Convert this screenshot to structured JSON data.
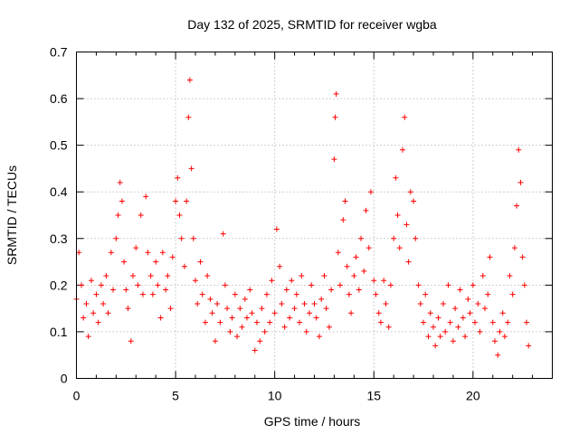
{
  "chart_data": {
    "type": "scatter",
    "title": "Day 132 of 2025, SRMTID for receiver wgba",
    "xlabel": "GPS time / hours",
    "ylabel": "SRMTID / TECUs",
    "xlim": [
      0,
      24
    ],
    "ylim": [
      0,
      0.7
    ],
    "xticks": [
      0,
      5,
      10,
      15,
      20
    ],
    "yticks": [
      0,
      0.1,
      0.2,
      0.3,
      0.4,
      0.5,
      0.6,
      0.7
    ],
    "grid": true,
    "marker": "+",
    "color": "#ff0000",
    "x": [
      0.0,
      0.12,
      0.25,
      0.35,
      0.5,
      0.6,
      0.75,
      0.85,
      1.0,
      1.1,
      1.25,
      1.35,
      1.5,
      1.6,
      1.75,
      1.85,
      2.0,
      2.1,
      2.2,
      2.3,
      2.4,
      2.5,
      2.6,
      2.75,
      2.85,
      3.0,
      3.1,
      3.25,
      3.35,
      3.5,
      3.6,
      3.75,
      3.85,
      4.0,
      4.1,
      4.25,
      4.35,
      4.5,
      4.6,
      4.75,
      4.85,
      5.0,
      5.1,
      5.2,
      5.3,
      5.45,
      5.55,
      5.65,
      5.72,
      5.8,
      5.9,
      6.0,
      6.1,
      6.25,
      6.35,
      6.5,
      6.6,
      6.75,
      6.85,
      7.0,
      7.1,
      7.25,
      7.4,
      7.5,
      7.6,
      7.75,
      7.85,
      8.0,
      8.1,
      8.25,
      8.35,
      8.5,
      8.6,
      8.75,
      8.85,
      9.0,
      9.1,
      9.25,
      9.35,
      9.5,
      9.6,
      9.75,
      9.85,
      10.0,
      10.1,
      10.25,
      10.35,
      10.5,
      10.6,
      10.75,
      10.85,
      11.0,
      11.1,
      11.25,
      11.35,
      11.5,
      11.6,
      11.75,
      11.85,
      12.0,
      12.1,
      12.25,
      12.35,
      12.5,
      12.6,
      12.75,
      12.85,
      13.0,
      13.05,
      13.1,
      13.2,
      13.3,
      13.45,
      13.55,
      13.65,
      13.75,
      13.85,
      14.0,
      14.1,
      14.25,
      14.35,
      14.5,
      14.6,
      14.75,
      14.85,
      15.0,
      15.1,
      15.25,
      15.35,
      15.5,
      15.6,
      15.75,
      15.85,
      16.0,
      16.1,
      16.2,
      16.3,
      16.45,
      16.55,
      16.65,
      16.75,
      16.85,
      17.0,
      17.1,
      17.25,
      17.35,
      17.5,
      17.6,
      17.75,
      17.85,
      18.0,
      18.1,
      18.25,
      18.35,
      18.5,
      18.6,
      18.75,
      18.85,
      19.0,
      19.1,
      19.25,
      19.35,
      19.5,
      19.6,
      19.75,
      19.85,
      20.0,
      20.1,
      20.25,
      20.35,
      20.5,
      20.6,
      20.75,
      20.85,
      21.0,
      21.1,
      21.25,
      21.35,
      21.5,
      21.6,
      21.75,
      21.85,
      22.0,
      22.1,
      22.2,
      22.3,
      22.4,
      22.5,
      22.6,
      22.7,
      22.8
    ],
    "y": [
      0.17,
      0.27,
      0.2,
      0.13,
      0.16,
      0.09,
      0.21,
      0.14,
      0.18,
      0.12,
      0.2,
      0.16,
      0.22,
      0.14,
      0.27,
      0.19,
      0.3,
      0.35,
      0.42,
      0.38,
      0.25,
      0.19,
      0.15,
      0.08,
      0.22,
      0.28,
      0.2,
      0.35,
      0.18,
      0.39,
      0.27,
      0.22,
      0.18,
      0.25,
      0.2,
      0.13,
      0.27,
      0.19,
      0.22,
      0.15,
      0.26,
      0.38,
      0.43,
      0.35,
      0.3,
      0.24,
      0.38,
      0.56,
      0.64,
      0.45,
      0.3,
      0.21,
      0.16,
      0.25,
      0.18,
      0.12,
      0.22,
      0.17,
      0.14,
      0.08,
      0.16,
      0.12,
      0.31,
      0.2,
      0.15,
      0.1,
      0.13,
      0.18,
      0.09,
      0.15,
      0.11,
      0.17,
      0.13,
      0.19,
      0.14,
      0.06,
      0.12,
      0.08,
      0.15,
      0.1,
      0.18,
      0.12,
      0.21,
      0.14,
      0.32,
      0.24,
      0.16,
      0.11,
      0.19,
      0.13,
      0.21,
      0.15,
      0.18,
      0.12,
      0.22,
      0.16,
      0.1,
      0.14,
      0.2,
      0.16,
      0.13,
      0.09,
      0.17,
      0.22,
      0.15,
      0.11,
      0.19,
      0.47,
      0.56,
      0.61,
      0.27,
      0.2,
      0.34,
      0.38,
      0.24,
      0.18,
      0.14,
      0.22,
      0.26,
      0.19,
      0.3,
      0.23,
      0.36,
      0.28,
      0.4,
      0.21,
      0.18,
      0.14,
      0.12,
      0.21,
      0.16,
      0.11,
      0.2,
      0.3,
      0.43,
      0.35,
      0.28,
      0.49,
      0.56,
      0.33,
      0.25,
      0.4,
      0.38,
      0.3,
      0.2,
      0.16,
      0.12,
      0.18,
      0.09,
      0.14,
      0.11,
      0.07,
      0.13,
      0.09,
      0.16,
      0.1,
      0.2,
      0.12,
      0.08,
      0.15,
      0.11,
      0.19,
      0.13,
      0.09,
      0.17,
      0.14,
      0.2,
      0.12,
      0.16,
      0.1,
      0.22,
      0.15,
      0.18,
      0.26,
      0.12,
      0.08,
      0.05,
      0.1,
      0.14,
      0.09,
      0.12,
      0.22,
      0.18,
      0.28,
      0.37,
      0.49,
      0.42,
      0.26,
      0.2,
      0.12,
      0.07
    ]
  }
}
